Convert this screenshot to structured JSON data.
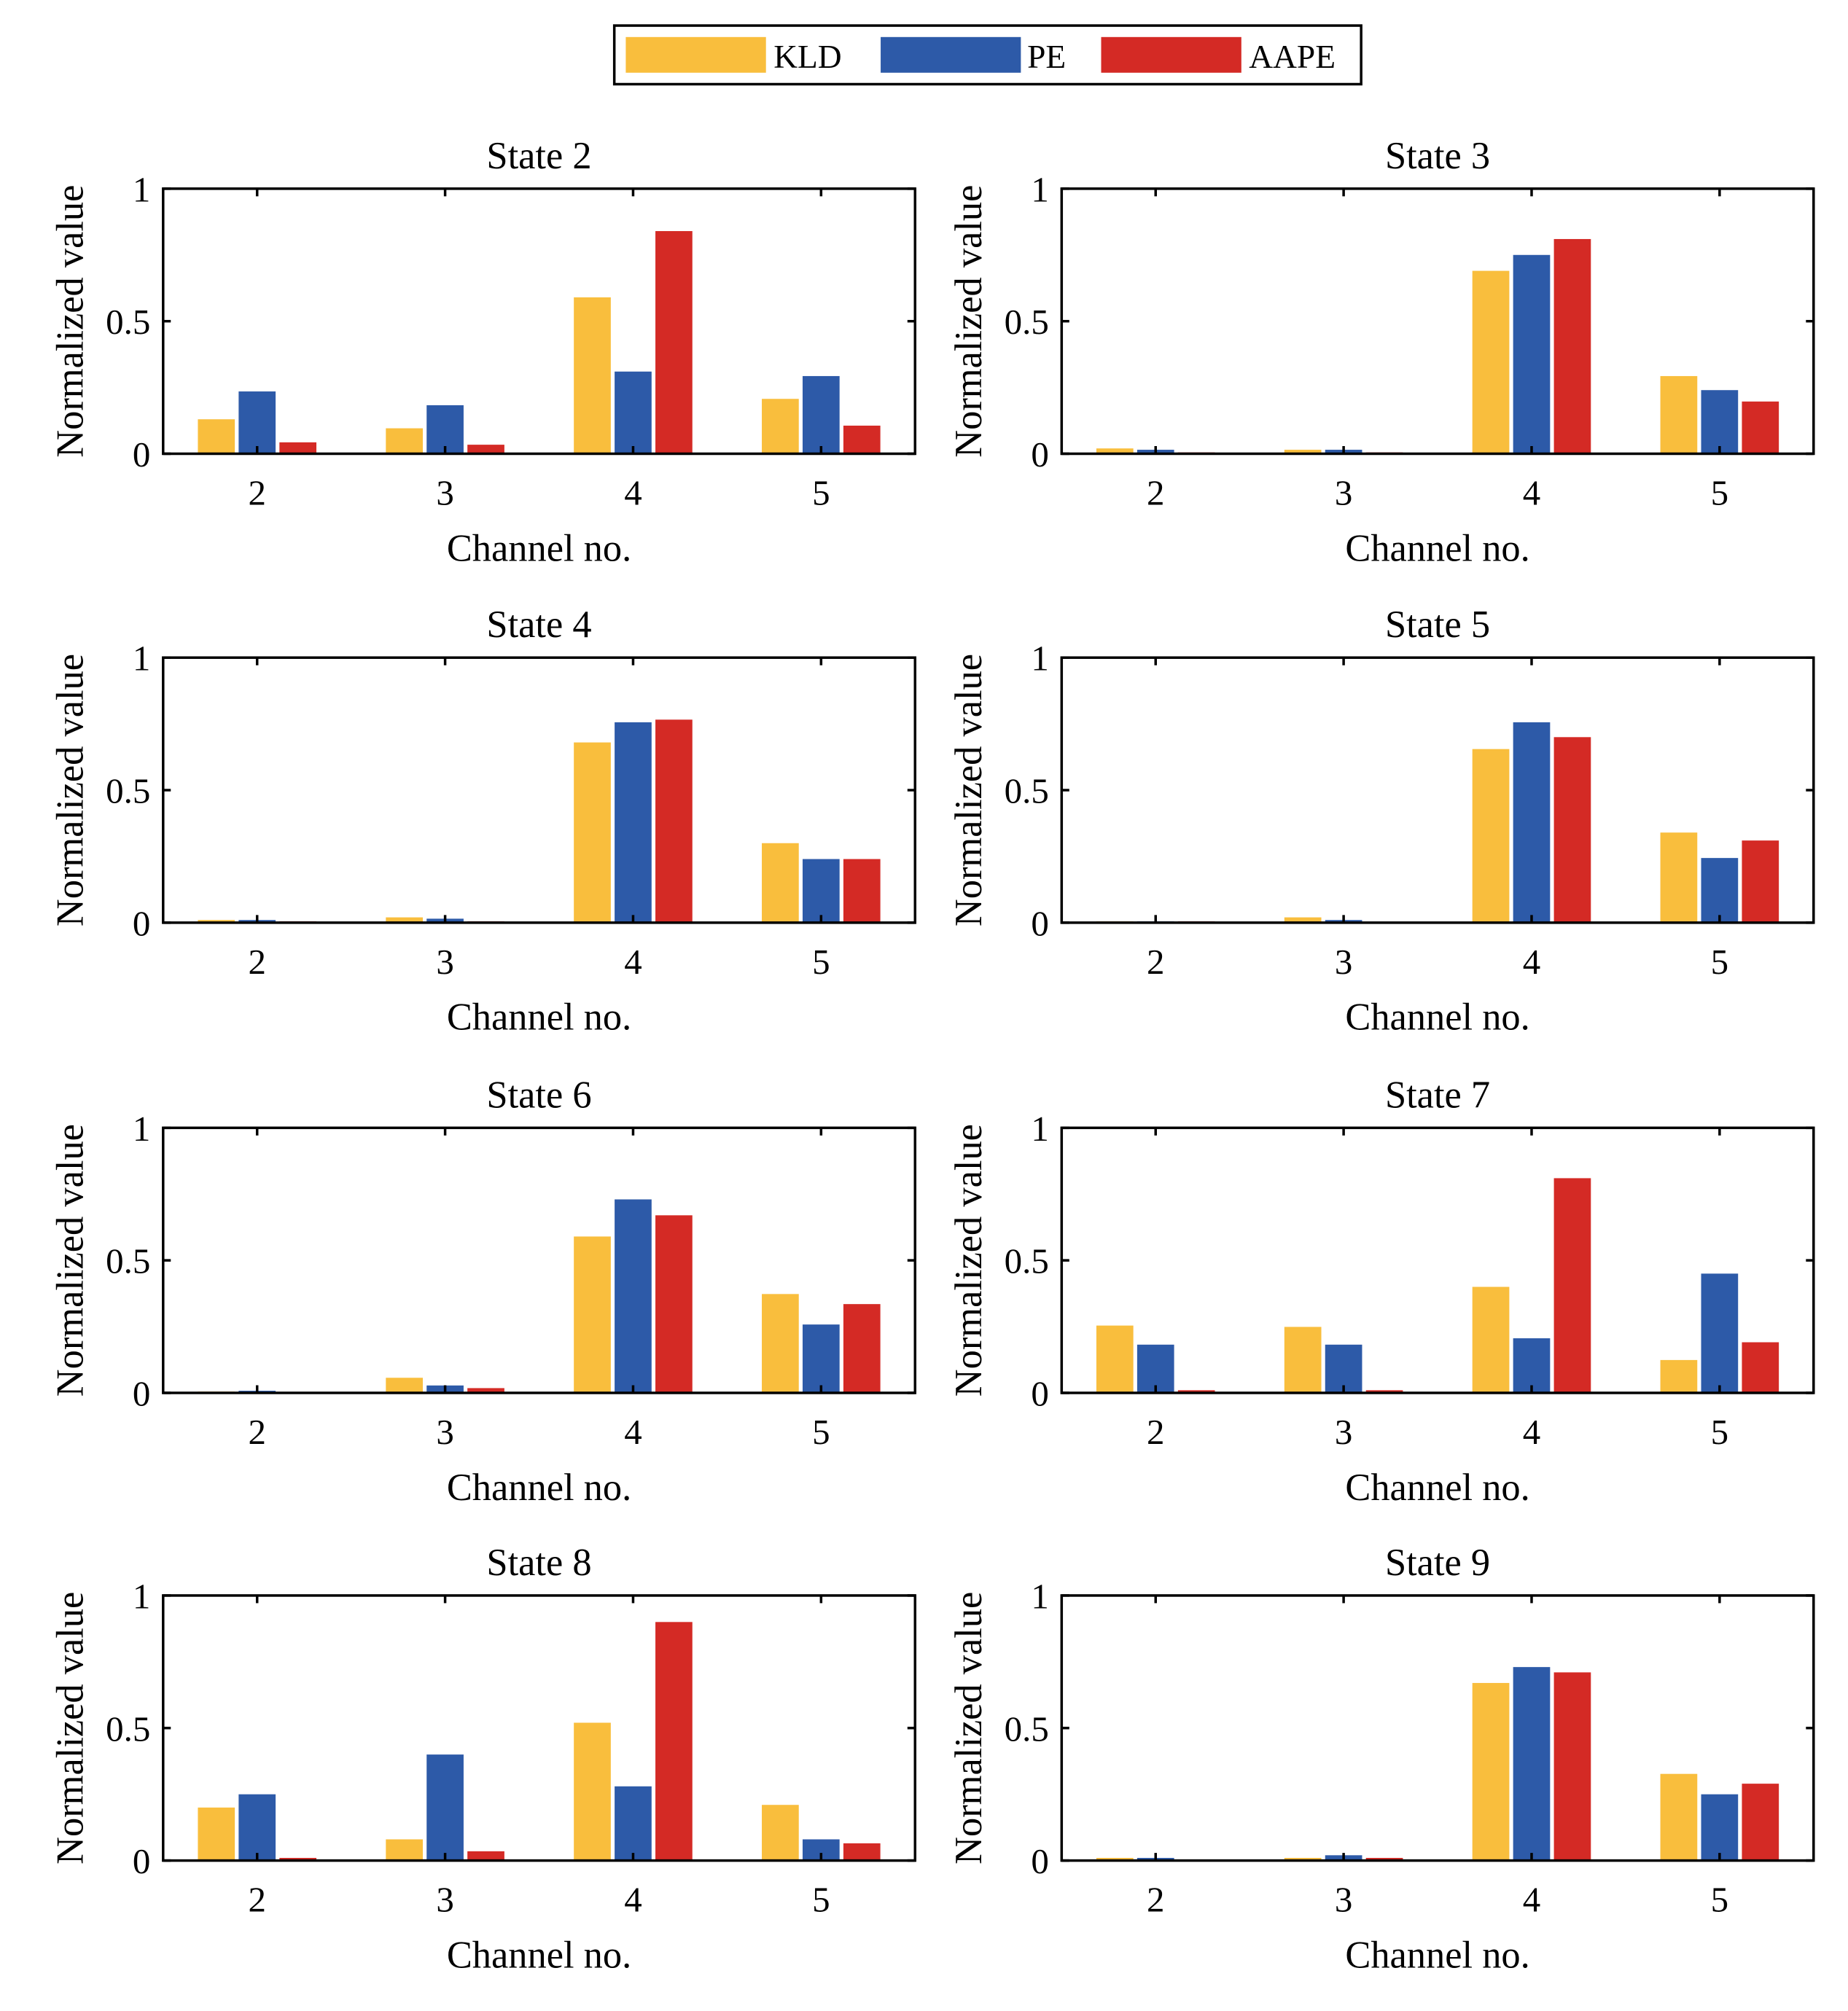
{
  "chart_data": {
    "type": "bar",
    "layout": "4x2 grid of grouped bar charts",
    "legend": {
      "placement": "top-center",
      "entries": [
        "KLD",
        "PE",
        "AAPE"
      ]
    },
    "colors": {
      "KLD": "#F9BE3D",
      "PE": "#2D5AA8",
      "AAPE": "#D42A25"
    },
    "shared": {
      "xlabel": "Channel no.",
      "ylabel": "Normalized value",
      "categories": [
        "2",
        "3",
        "4",
        "5"
      ],
      "ylim": [
        0,
        1
      ],
      "yticks": [
        "0",
        "0.5",
        "1"
      ],
      "grid": false
    },
    "panels": [
      {
        "title": "State 2",
        "series": [
          {
            "name": "KLD",
            "values": [
              0.13,
              0.096,
              0.59,
              0.207
            ]
          },
          {
            "name": "PE",
            "values": [
              0.235,
              0.183,
              0.31,
              0.293
            ]
          },
          {
            "name": "AAPE",
            "values": [
              0.043,
              0.034,
              0.84,
              0.106
            ]
          }
        ]
      },
      {
        "title": "State 3",
        "series": [
          {
            "name": "KLD",
            "values": [
              0.02,
              0.015,
              0.69,
              0.293
            ]
          },
          {
            "name": "PE",
            "values": [
              0.015,
              0.015,
              0.75,
              0.24
            ]
          },
          {
            "name": "AAPE",
            "values": [
              0.005,
              0.005,
              0.81,
              0.197
            ]
          }
        ]
      },
      {
        "title": "State 4",
        "series": [
          {
            "name": "KLD",
            "values": [
              0.01,
              0.02,
              0.68,
              0.3
            ]
          },
          {
            "name": "PE",
            "values": [
              0.01,
              0.015,
              0.756,
              0.24
            ]
          },
          {
            "name": "AAPE",
            "values": [
              0.005,
              0.005,
              0.766,
              0.24
            ]
          }
        ]
      },
      {
        "title": "State 5",
        "series": [
          {
            "name": "KLD",
            "values": [
              0.005,
              0.02,
              0.655,
              0.34
            ]
          },
          {
            "name": "PE",
            "values": [
              0.005,
              0.01,
              0.756,
              0.244
            ]
          },
          {
            "name": "AAPE",
            "values": [
              0.005,
              0.0,
              0.7,
              0.31
            ]
          }
        ]
      },
      {
        "title": "State 6",
        "series": [
          {
            "name": "KLD",
            "values": [
              0.005,
              0.057,
              0.59,
              0.373
            ]
          },
          {
            "name": "PE",
            "values": [
              0.008,
              0.028,
              0.73,
              0.258
            ]
          },
          {
            "name": "AAPE",
            "values": [
              0.004,
              0.018,
              0.67,
              0.335
            ]
          }
        ]
      },
      {
        "title": "State 7",
        "series": [
          {
            "name": "KLD",
            "values": [
              0.254,
              0.249,
              0.4,
              0.124
            ]
          },
          {
            "name": "PE",
            "values": [
              0.182,
              0.182,
              0.206,
              0.45
            ]
          },
          {
            "name": "AAPE",
            "values": [
              0.01,
              0.01,
              0.81,
              0.191
            ]
          }
        ]
      },
      {
        "title": "State 8",
        "series": [
          {
            "name": "KLD",
            "values": [
              0.2,
              0.08,
              0.52,
              0.21
            ]
          },
          {
            "name": "PE",
            "values": [
              0.25,
              0.4,
              0.28,
              0.08
            ]
          },
          {
            "name": "AAPE",
            "values": [
              0.01,
              0.035,
              0.9,
              0.065
            ]
          }
        ]
      },
      {
        "title": "State 9",
        "series": [
          {
            "name": "KLD",
            "values": [
              0.01,
              0.01,
              0.67,
              0.327
            ]
          },
          {
            "name": "PE",
            "values": [
              0.01,
              0.02,
              0.73,
              0.25
            ]
          },
          {
            "name": "AAPE",
            "values": [
              0.0,
              0.01,
              0.71,
              0.29
            ]
          }
        ]
      }
    ]
  }
}
